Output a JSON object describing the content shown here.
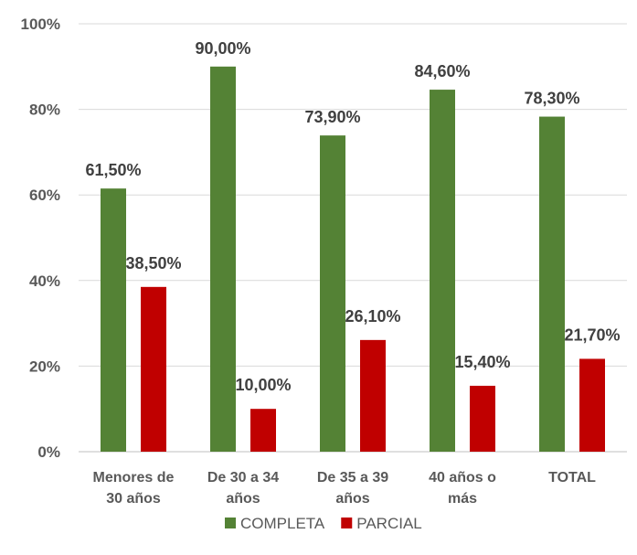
{
  "chart_data": {
    "type": "bar",
    "categories": [
      [
        "Menores de",
        "30 años"
      ],
      [
        "De 30 a 34",
        "años"
      ],
      [
        "De 35 a 39",
        "años"
      ],
      [
        "40 años o",
        "más"
      ],
      [
        "TOTAL"
      ]
    ],
    "series": [
      {
        "name": "COMPLETA",
        "color": "#548235",
        "values": [
          61.5,
          90.0,
          73.9,
          84.6,
          78.3
        ],
        "labels": [
          "61,50%",
          "90,00%",
          "73,90%",
          "84,60%",
          "78,30%"
        ]
      },
      {
        "name": "PARCIAL",
        "color": "#c00000",
        "values": [
          38.5,
          10.0,
          26.1,
          15.4,
          21.7
        ],
        "labels": [
          "38,50%",
          "10,00%",
          "26,10%",
          "15,40%",
          "21,70%"
        ]
      }
    ],
    "ylim": [
      0,
      100
    ],
    "yticks": [
      0,
      20,
      40,
      60,
      80,
      100
    ],
    "ytick_labels": [
      "0%",
      "20%",
      "40%",
      "60%",
      "80%",
      "100%"
    ],
    "grid": true,
    "legend_position": "bottom"
  }
}
